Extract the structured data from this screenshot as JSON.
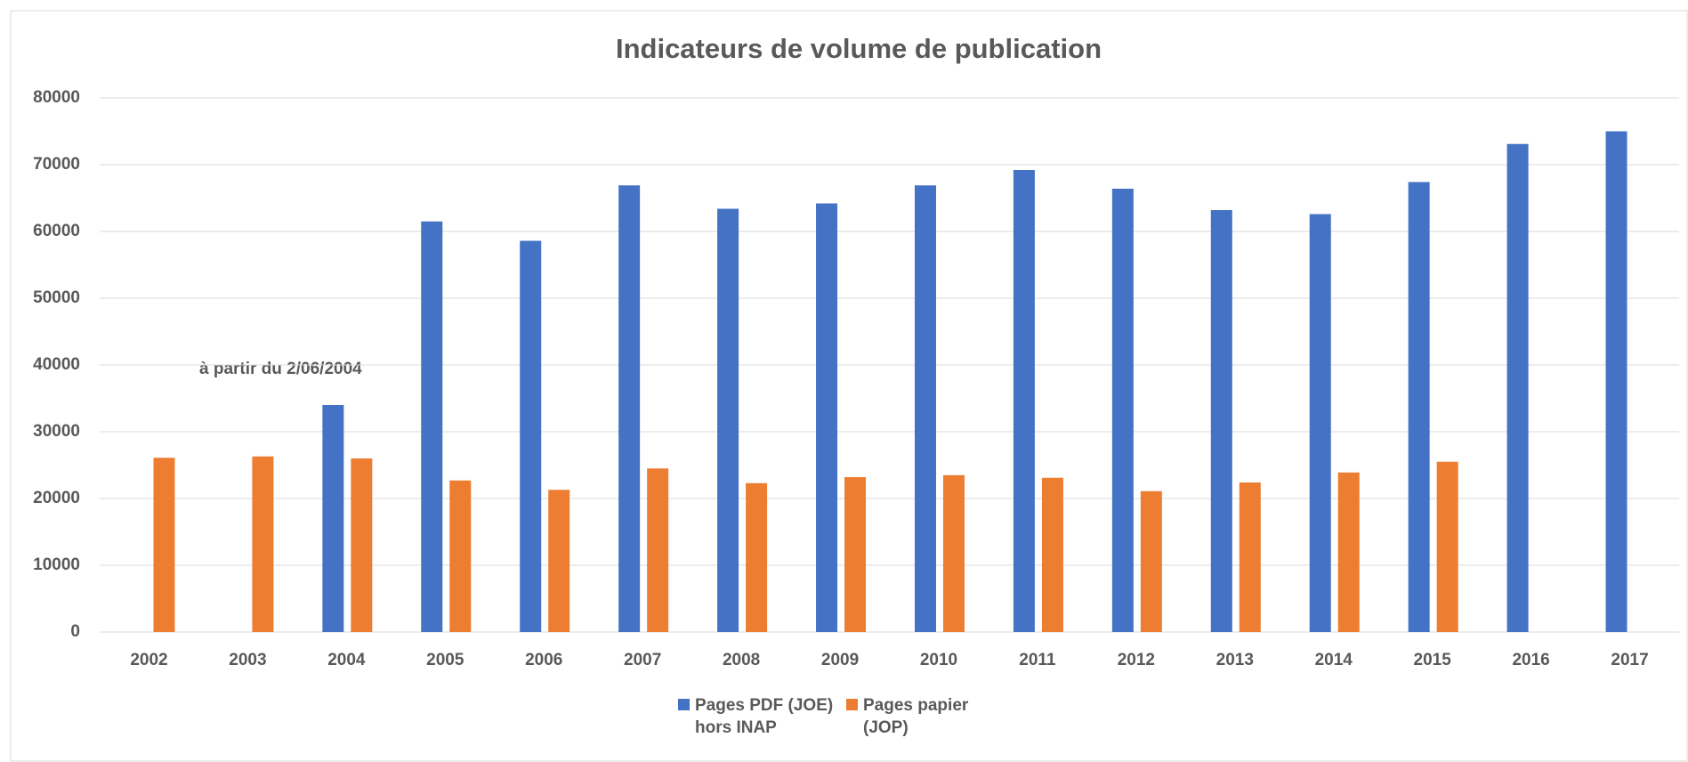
{
  "chart_data": {
    "type": "bar",
    "title": "Indicateurs de volume de publication",
    "categories": [
      "2002",
      "2003",
      "2004",
      "2005",
      "2006",
      "2007",
      "2008",
      "2009",
      "2010",
      "2011",
      "2012",
      "2013",
      "2014",
      "2015",
      "2016",
      "2017"
    ],
    "series": [
      {
        "name": "Pages PDF (JOE) hors INAP",
        "color": "#4472c4",
        "values": [
          null,
          null,
          34000,
          61500,
          58600,
          66900,
          63400,
          64200,
          66900,
          69200,
          66400,
          63200,
          62600,
          67400,
          73100,
          75000
        ]
      },
      {
        "name": "Pages papier (JOP)",
        "color": "#ed7d31",
        "values": [
          26100,
          26300,
          26000,
          22700,
          21300,
          24500,
          22300,
          23200,
          23500,
          23100,
          21100,
          22400,
          23900,
          25500,
          null,
          null
        ]
      }
    ],
    "annotations": [
      "à partir du 2/06/2004"
    ],
    "ylim": [
      0,
      80000
    ],
    "yticks": [
      0,
      10000,
      20000,
      30000,
      40000,
      50000,
      60000,
      70000,
      80000
    ],
    "grid": true,
    "legend": "bottom"
  }
}
